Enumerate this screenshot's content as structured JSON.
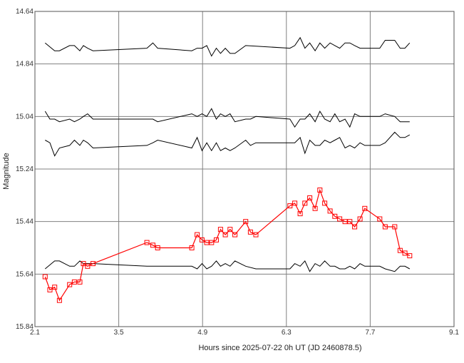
{
  "chart_data": {
    "type": "line",
    "xlabel": "Hours since 2025-07-22 0h UT (JD 2460878.5)",
    "ylabel": "Magnitude",
    "xlim": [
      2.1,
      9.1
    ],
    "ylim": [
      14.64,
      15.84
    ],
    "y_inverted": true,
    "grid": true,
    "x_ticks": [
      "2.1",
      "3.5",
      "4.9",
      "6.3",
      "7.7",
      "9.1"
    ],
    "y_ticks": [
      "14.64",
      "14.84",
      "15.04",
      "15.24",
      "15.44",
      "15.64",
      "15.84"
    ],
    "colors": {
      "target": "#ff0000",
      "comparison": "#000000",
      "grid": "#808080"
    },
    "target_series": {
      "marker": "square",
      "points": [
        [
          2.27,
          15.65
        ],
        [
          2.35,
          15.7
        ],
        [
          2.43,
          15.69
        ],
        [
          2.51,
          15.74
        ],
        [
          2.68,
          15.68
        ],
        [
          2.76,
          15.67
        ],
        [
          2.85,
          15.67
        ],
        [
          2.91,
          15.6
        ],
        [
          2.98,
          15.61
        ],
        [
          3.07,
          15.6
        ],
        [
          3.97,
          15.52
        ],
        [
          4.07,
          15.53
        ],
        [
          4.15,
          15.54
        ],
        [
          4.72,
          15.54
        ],
        [
          4.81,
          15.49
        ],
        [
          4.89,
          15.51
        ],
        [
          4.97,
          15.52
        ],
        [
          5.05,
          15.52
        ],
        [
          5.13,
          15.51
        ],
        [
          5.2,
          15.47
        ],
        [
          5.28,
          15.49
        ],
        [
          5.36,
          15.47
        ],
        [
          5.44,
          15.49
        ],
        [
          5.62,
          15.44
        ],
        [
          5.7,
          15.48
        ],
        [
          5.79,
          15.49
        ],
        [
          6.36,
          15.38
        ],
        [
          6.44,
          15.37
        ],
        [
          6.53,
          15.41
        ],
        [
          6.61,
          15.37
        ],
        [
          6.69,
          15.35
        ],
        [
          6.78,
          15.39
        ],
        [
          6.86,
          15.32
        ],
        [
          6.94,
          15.37
        ],
        [
          7.03,
          15.4
        ],
        [
          7.11,
          15.42
        ],
        [
          7.19,
          15.43
        ],
        [
          7.28,
          15.44
        ],
        [
          7.36,
          15.44
        ],
        [
          7.44,
          15.46
        ],
        [
          7.53,
          15.43
        ],
        [
          7.61,
          15.39
        ],
        [
          7.86,
          15.43
        ],
        [
          7.95,
          15.46
        ],
        [
          8.11,
          15.46
        ],
        [
          8.2,
          15.55
        ],
        [
          8.28,
          15.56
        ],
        [
          8.36,
          15.57
        ]
      ]
    },
    "comparison_series": [
      {
        "points": [
          [
            2.27,
            14.76
          ],
          [
            2.43,
            14.79
          ],
          [
            2.51,
            14.79
          ],
          [
            2.68,
            14.77
          ],
          [
            2.76,
            14.77
          ],
          [
            2.85,
            14.79
          ],
          [
            2.91,
            14.77
          ],
          [
            2.98,
            14.78
          ],
          [
            3.07,
            14.79
          ],
          [
            3.97,
            14.78
          ],
          [
            4.07,
            14.76
          ],
          [
            4.15,
            14.78
          ],
          [
            4.72,
            14.79
          ],
          [
            4.81,
            14.78
          ],
          [
            4.89,
            14.78
          ],
          [
            4.97,
            14.77
          ],
          [
            5.05,
            14.81
          ],
          [
            5.13,
            14.78
          ],
          [
            5.2,
            14.8
          ],
          [
            5.28,
            14.78
          ],
          [
            5.36,
            14.8
          ],
          [
            5.44,
            14.8
          ],
          [
            5.62,
            14.77
          ],
          [
            6.36,
            14.78
          ],
          [
            6.44,
            14.77
          ],
          [
            6.53,
            14.74
          ],
          [
            6.61,
            14.78
          ],
          [
            6.69,
            14.76
          ],
          [
            6.78,
            14.79
          ],
          [
            6.86,
            14.76
          ],
          [
            6.94,
            14.78
          ],
          [
            7.03,
            14.76
          ],
          [
            7.11,
            14.77
          ],
          [
            7.19,
            14.78
          ],
          [
            7.28,
            14.76
          ],
          [
            7.36,
            14.76
          ],
          [
            7.44,
            14.77
          ],
          [
            7.53,
            14.78
          ],
          [
            7.61,
            14.78
          ],
          [
            7.86,
            14.78
          ],
          [
            7.95,
            14.75
          ],
          [
            8.11,
            14.75
          ],
          [
            8.2,
            14.78
          ],
          [
            8.28,
            14.78
          ],
          [
            8.36,
            14.76
          ]
        ]
      },
      {
        "points": [
          [
            2.27,
            15.02
          ],
          [
            2.35,
            15.05
          ],
          [
            2.43,
            15.05
          ],
          [
            2.51,
            15.06
          ],
          [
            2.68,
            15.05
          ],
          [
            2.76,
            15.06
          ],
          [
            2.85,
            15.05
          ],
          [
            2.91,
            15.04
          ],
          [
            2.98,
            15.03
          ],
          [
            3.07,
            15.05
          ],
          [
            3.97,
            15.05
          ],
          [
            4.07,
            15.05
          ],
          [
            4.15,
            15.06
          ],
          [
            4.72,
            15.03
          ],
          [
            4.81,
            15.04
          ],
          [
            4.89,
            15.03
          ],
          [
            4.97,
            15.04
          ],
          [
            5.05,
            15.01
          ],
          [
            5.13,
            15.05
          ],
          [
            5.2,
            15.03
          ],
          [
            5.28,
            15.04
          ],
          [
            5.36,
            15.03
          ],
          [
            5.44,
            15.06
          ],
          [
            5.62,
            15.05
          ],
          [
            5.7,
            15.05
          ],
          [
            5.79,
            15.04
          ],
          [
            6.36,
            15.05
          ],
          [
            6.44,
            15.08
          ],
          [
            6.53,
            15.05
          ],
          [
            6.61,
            15.05
          ],
          [
            6.69,
            15.03
          ],
          [
            6.78,
            15.06
          ],
          [
            6.86,
            15.02
          ],
          [
            6.94,
            15.05
          ],
          [
            7.03,
            15.06
          ],
          [
            7.11,
            15.03
          ],
          [
            7.19,
            15.06
          ],
          [
            7.28,
            15.05
          ],
          [
            7.36,
            15.08
          ],
          [
            7.44,
            15.03
          ],
          [
            7.53,
            15.04
          ],
          [
            7.61,
            15.04
          ],
          [
            7.86,
            15.04
          ],
          [
            7.95,
            15.03
          ],
          [
            8.11,
            15.04
          ],
          [
            8.2,
            15.06
          ],
          [
            8.28,
            15.06
          ],
          [
            8.36,
            15.06
          ]
        ]
      },
      {
        "points": [
          [
            2.27,
            15.13
          ],
          [
            2.35,
            15.14
          ],
          [
            2.43,
            15.19
          ],
          [
            2.51,
            15.16
          ],
          [
            2.68,
            15.15
          ],
          [
            2.76,
            15.13
          ],
          [
            2.85,
            15.15
          ],
          [
            2.91,
            15.13
          ],
          [
            2.98,
            15.14
          ],
          [
            3.07,
            15.16
          ],
          [
            3.97,
            15.15
          ],
          [
            4.07,
            15.14
          ],
          [
            4.15,
            15.13
          ],
          [
            4.72,
            15.16
          ],
          [
            4.81,
            15.12
          ],
          [
            4.89,
            15.17
          ],
          [
            4.97,
            15.14
          ],
          [
            5.05,
            15.17
          ],
          [
            5.13,
            15.14
          ],
          [
            5.2,
            15.17
          ],
          [
            5.28,
            15.16
          ],
          [
            5.36,
            15.17
          ],
          [
            5.44,
            15.16
          ],
          [
            5.62,
            15.13
          ],
          [
            5.7,
            15.15
          ],
          [
            5.79,
            15.14
          ],
          [
            6.36,
            15.14
          ],
          [
            6.44,
            15.14
          ],
          [
            6.53,
            15.12
          ],
          [
            6.61,
            15.18
          ],
          [
            6.69,
            15.13
          ],
          [
            6.78,
            15.15
          ],
          [
            6.86,
            15.15
          ],
          [
            6.94,
            15.13
          ],
          [
            7.03,
            15.14
          ],
          [
            7.11,
            15.13
          ],
          [
            7.19,
            15.12
          ],
          [
            7.28,
            15.16
          ],
          [
            7.36,
            15.15
          ],
          [
            7.44,
            15.16
          ],
          [
            7.53,
            15.14
          ],
          [
            7.61,
            15.15
          ],
          [
            7.86,
            15.15
          ],
          [
            7.95,
            15.14
          ],
          [
            8.11,
            15.1
          ],
          [
            8.2,
            15.12
          ],
          [
            8.28,
            15.12
          ],
          [
            8.36,
            15.11
          ]
        ]
      },
      {
        "points": [
          [
            2.27,
            15.62
          ],
          [
            2.43,
            15.59
          ],
          [
            2.51,
            15.59
          ],
          [
            2.68,
            15.61
          ],
          [
            2.76,
            15.61
          ],
          [
            2.85,
            15.59
          ],
          [
            2.91,
            15.6
          ],
          [
            2.98,
            15.6
          ],
          [
            3.07,
            15.6
          ],
          [
            3.97,
            15.61
          ],
          [
            4.07,
            15.61
          ],
          [
            4.15,
            15.61
          ],
          [
            4.72,
            15.61
          ],
          [
            4.81,
            15.62
          ],
          [
            4.89,
            15.6
          ],
          [
            4.97,
            15.62
          ],
          [
            5.05,
            15.61
          ],
          [
            5.13,
            15.59
          ],
          [
            5.2,
            15.61
          ],
          [
            5.28,
            15.6
          ],
          [
            5.36,
            15.61
          ],
          [
            5.44,
            15.59
          ],
          [
            5.62,
            15.61
          ],
          [
            5.79,
            15.62
          ],
          [
            6.36,
            15.62
          ],
          [
            6.44,
            15.6
          ],
          [
            6.53,
            15.61
          ],
          [
            6.61,
            15.59
          ],
          [
            6.69,
            15.63
          ],
          [
            6.78,
            15.6
          ],
          [
            6.86,
            15.61
          ],
          [
            6.94,
            15.59
          ],
          [
            7.03,
            15.61
          ],
          [
            7.11,
            15.61
          ],
          [
            7.19,
            15.62
          ],
          [
            7.28,
            15.62
          ],
          [
            7.36,
            15.61
          ],
          [
            7.44,
            15.62
          ],
          [
            7.53,
            15.6
          ],
          [
            7.61,
            15.61
          ],
          [
            7.86,
            15.61
          ],
          [
            7.95,
            15.62
          ],
          [
            8.11,
            15.63
          ],
          [
            8.2,
            15.61
          ],
          [
            8.28,
            15.61
          ],
          [
            8.36,
            15.62
          ]
        ]
      }
    ]
  }
}
